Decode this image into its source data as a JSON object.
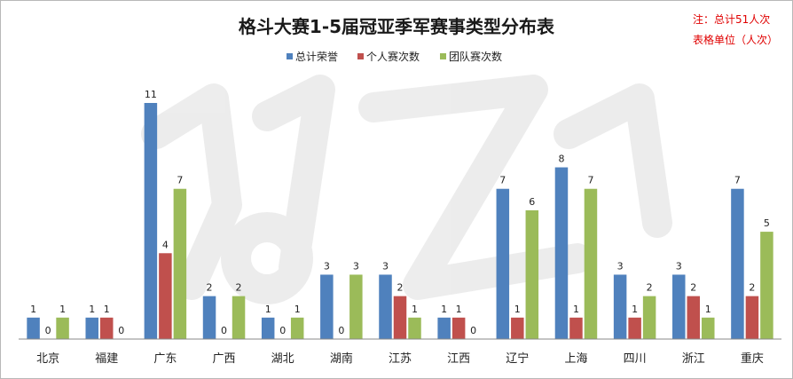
{
  "chart_data": {
    "type": "bar",
    "title": "格斗大赛1-5届冠亚季军赛事类型分布表",
    "notes": [
      "注：总计51人次",
      "表格单位（人次）"
    ],
    "legend_position": "top",
    "grid": false,
    "categories": [
      "北京",
      "福建",
      "广东",
      "广西",
      "湖北",
      "湖南",
      "江苏",
      "江西",
      "辽宁",
      "上海",
      "四川",
      "浙江",
      "重庆"
    ],
    "series": [
      {
        "name": "总计荣誉",
        "color": "#4f81bd",
        "values": [
          1,
          1,
          11,
          2,
          1,
          3,
          3,
          1,
          7,
          8,
          3,
          3,
          7
        ]
      },
      {
        "name": "个人赛次数",
        "color": "#c0504d",
        "values": [
          0,
          1,
          4,
          0,
          0,
          0,
          2,
          1,
          1,
          1,
          1,
          2,
          2
        ]
      },
      {
        "name": "团队赛次数",
        "color": "#9bbb59",
        "values": [
          1,
          0,
          7,
          2,
          1,
          3,
          1,
          0,
          6,
          7,
          2,
          1,
          5
        ]
      }
    ],
    "ylim": [
      0,
      11
    ]
  }
}
